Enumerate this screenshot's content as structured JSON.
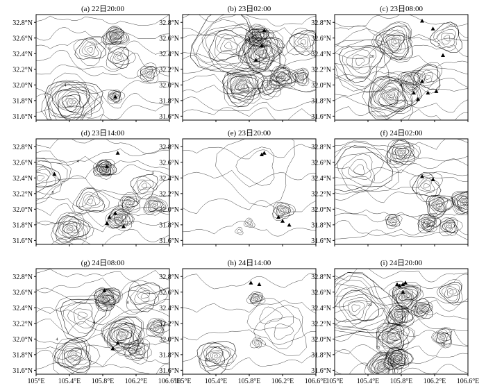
{
  "panels": [
    {
      "label": "(a) 22日20:00",
      "density": "medium",
      "centers": [
        [
          105.95,
          32.62,
          0.09,
          14
        ],
        [
          105.42,
          31.78,
          0.22,
          16
        ],
        [
          105.95,
          31.85,
          0.06,
          8
        ],
        [
          106.35,
          32.15,
          0.08,
          7
        ],
        [
          105.65,
          32.45,
          0.12,
          6
        ],
        [
          106.0,
          32.35,
          0.1,
          6
        ]
      ],
      "markers": [
        [
          105.95,
          31.85
        ]
      ],
      "labels": [
        [
          105.35,
          31.98,
          "4"
        ],
        [
          105.88,
          32.45,
          "8"
        ]
      ]
    },
    {
      "label": "(b) 23日02:00",
      "density": "high",
      "centers": [
        [
          105.95,
          32.42,
          0.18,
          18
        ],
        [
          105.9,
          32.62,
          0.1,
          14
        ],
        [
          105.72,
          31.98,
          0.16,
          16
        ],
        [
          106.2,
          32.1,
          0.1,
          12
        ],
        [
          106.42,
          32.1,
          0.07,
          8
        ],
        [
          105.55,
          32.5,
          0.28,
          10
        ],
        [
          106.05,
          31.98,
          0.1,
          8
        ],
        [
          106.45,
          32.55,
          0.12,
          6
        ]
      ],
      "markers": [
        [
          105.98,
          32.7
        ],
        [
          105.95,
          32.5
        ],
        [
          105.88,
          32.32
        ]
      ],
      "labels": [
        [
          105.78,
          32.55,
          "20"
        ],
        [
          106.22,
          32.2,
          "30"
        ],
        [
          105.55,
          32.12,
          "10"
        ]
      ]
    },
    {
      "label": "(c) 23日08:00",
      "density": "high",
      "centers": [
        [
          105.68,
          31.85,
          0.2,
          16
        ],
        [
          105.72,
          32.55,
          0.16,
          12
        ],
        [
          105.92,
          32.05,
          0.1,
          8
        ],
        [
          106.12,
          32.1,
          0.12,
          6
        ],
        [
          105.3,
          32.3,
          0.25,
          8
        ],
        [
          106.35,
          32.6,
          0.12,
          5
        ]
      ],
      "markers": [
        [
          106.05,
          32.82
        ],
        [
          106.18,
          32.72
        ],
        [
          106.05,
          32.05
        ],
        [
          105.95,
          31.9
        ],
        [
          106.0,
          31.82
        ],
        [
          106.12,
          31.9
        ],
        [
          106.22,
          31.92
        ],
        [
          106.3,
          32.38
        ]
      ],
      "labels": [
        [
          106.25,
          32.5,
          "3"
        ],
        [
          105.45,
          32.35,
          "20"
        ],
        [
          105.8,
          31.98,
          "40"
        ]
      ]
    },
    {
      "label": "(d) 23日14:00",
      "density": "high",
      "centers": [
        [
          105.82,
          32.52,
          0.08,
          16
        ],
        [
          105.42,
          31.75,
          0.14,
          12
        ],
        [
          106.0,
          31.88,
          0.1,
          12
        ],
        [
          106.12,
          32.08,
          0.08,
          8
        ],
        [
          106.42,
          32.05,
          0.08,
          8
        ],
        [
          105.05,
          32.4,
          0.2,
          8
        ],
        [
          105.65,
          32.1,
          0.12,
          6
        ],
        [
          106.3,
          32.3,
          0.1,
          5
        ]
      ],
      "markers": [
        [
          105.22,
          32.45
        ],
        [
          105.98,
          32.72
        ],
        [
          105.85,
          32.55
        ],
        [
          105.88,
          31.9
        ],
        [
          105.95,
          31.95
        ],
        [
          105.85,
          31.82
        ],
        [
          106.05,
          31.78
        ]
      ],
      "labels": [
        [
          105.5,
          32.6,
          "4"
        ],
        [
          105.2,
          32.2,
          "8"
        ],
        [
          106.4,
          32.45,
          "4"
        ]
      ]
    },
    {
      "label": "(e) 23日20:00",
      "density": "low",
      "centers": [
        [
          106.2,
          31.98,
          0.08,
          8
        ],
        [
          105.8,
          31.82,
          0.04,
          3
        ],
        [
          105.68,
          31.72,
          0.03,
          2
        ],
        [
          105.9,
          32.55,
          0.3,
          2
        ]
      ],
      "markers": [
        [
          105.98,
          32.72
        ],
        [
          105.95,
          32.7
        ],
        [
          106.2,
          31.85
        ],
        [
          106.28,
          31.8
        ],
        [
          106.15,
          31.9
        ]
      ],
      "labels": []
    },
    {
      "label": "(f) 24日02:00",
      "density": "high",
      "centers": [
        [
          105.8,
          32.72,
          0.12,
          12
        ],
        [
          106.55,
          32.1,
          0.1,
          12
        ],
        [
          106.25,
          32.05,
          0.1,
          10
        ],
        [
          106.12,
          31.82,
          0.08,
          10
        ],
        [
          106.38,
          31.78,
          0.08,
          8
        ],
        [
          105.7,
          31.85,
          0.06,
          6
        ],
        [
          106.1,
          32.3,
          0.12,
          6
        ],
        [
          105.3,
          32.5,
          0.25,
          6
        ]
      ],
      "markers": [
        [
          106.05,
          32.42
        ],
        [
          106.18,
          32.38
        ]
      ],
      "labels": [
        [
          105.65,
          32.6,
          "10"
        ],
        [
          106.5,
          32.0,
          "20"
        ],
        [
          106.12,
          31.78,
          "35"
        ]
      ]
    },
    {
      "label": "(g) 24日08:00",
      "density": "high",
      "centers": [
        [
          105.85,
          32.52,
          0.1,
          16
        ],
        [
          105.45,
          31.78,
          0.16,
          12
        ],
        [
          106.05,
          32.05,
          0.16,
          16
        ],
        [
          106.45,
          32.15,
          0.08,
          8
        ],
        [
          106.22,
          31.85,
          0.1,
          8
        ],
        [
          105.55,
          32.3,
          0.2,
          6
        ],
        [
          106.3,
          32.55,
          0.14,
          6
        ]
      ],
      "markers": [
        [
          105.82,
          32.62
        ],
        [
          105.98,
          31.95
        ],
        [
          105.92,
          31.88
        ]
      ],
      "labels": [
        [
          105.25,
          31.98,
          "4"
        ],
        [
          105.7,
          32.2,
          "4"
        ],
        [
          106.1,
          32.45,
          "8"
        ]
      ]
    },
    {
      "label": "(h) 24日14:00",
      "density": "low",
      "centers": [
        [
          105.4,
          31.78,
          0.14,
          10
        ],
        [
          105.88,
          32.52,
          0.06,
          8
        ],
        [
          105.9,
          31.95,
          0.05,
          4
        ],
        [
          106.2,
          32.1,
          0.2,
          3
        ],
        [
          106.05,
          32.3,
          0.15,
          2
        ]
      ],
      "markers": [
        [
          105.82,
          32.72
        ],
        [
          105.92,
          32.7
        ]
      ],
      "labels": [
        [
          105.3,
          31.72,
          "20"
        ]
      ]
    },
    {
      "label": "(i) 24日20:00",
      "density": "high",
      "centers": [
        [
          105.75,
          31.75,
          0.1,
          16
        ],
        [
          105.58,
          31.65,
          0.12,
          14
        ],
        [
          105.7,
          32.02,
          0.14,
          14
        ],
        [
          105.85,
          32.55,
          0.12,
          14
        ],
        [
          105.78,
          32.3,
          0.1,
          12
        ],
        [
          106.05,
          32.38,
          0.08,
          10
        ],
        [
          106.3,
          32.02,
          0.08,
          8
        ],
        [
          105.25,
          32.4,
          0.3,
          10
        ],
        [
          106.4,
          32.6,
          0.1,
          6
        ]
      ],
      "markers": [
        [
          105.75,
          32.7
        ],
        [
          105.78,
          32.68
        ],
        [
          105.82,
          32.7
        ],
        [
          105.85,
          32.72
        ],
        [
          105.82,
          32.6
        ]
      ],
      "labels": [
        [
          105.42,
          32.42,
          "20"
        ],
        [
          106.3,
          31.92,
          "10"
        ],
        [
          105.52,
          31.88,
          "15"
        ]
      ]
    }
  ],
  "axes": {
    "x_ticks": [
      "105°E",
      "105.4°E",
      "105.8°E",
      "106.2°E",
      "106.6°E"
    ],
    "y_ticks": [
      "32.8°N",
      "32.6°N",
      "32.4°N",
      "32.2°N",
      "32.0°N",
      "31.8°N",
      "31.6°N"
    ]
  }
}
